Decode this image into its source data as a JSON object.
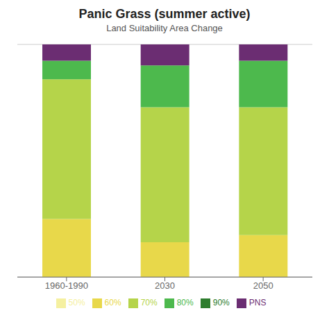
{
  "chart_data": {
    "type": "bar",
    "title": "Panic Grass (summer active)",
    "subtitle": "Land Suitability Area Change",
    "categories": [
      "1960-1990",
      "2030",
      "2050"
    ],
    "series": [
      {
        "name": "50%",
        "color": "#f5f0a0",
        "values": [
          0,
          0,
          0
        ]
      },
      {
        "name": "60%",
        "color": "#e8d84a",
        "values": [
          25,
          15,
          18
        ]
      },
      {
        "name": "70%",
        "color": "#b5d44a",
        "values": [
          60,
          58,
          55
        ]
      },
      {
        "name": "80%",
        "color": "#4db94d",
        "values": [
          8,
          18,
          20
        ]
      },
      {
        "name": "90%",
        "color": "#2e7d2e",
        "values": [
          0,
          0,
          0
        ]
      },
      {
        "name": "PNS",
        "color": "#6b2d72",
        "values": [
          7,
          9,
          7
        ]
      }
    ],
    "stacked": true,
    "ylim": [
      0,
      100
    ],
    "yticks": [
      0,
      20,
      40,
      60,
      80,
      100
    ],
    "grid": true,
    "tick_labels": "x",
    "legend": "bottom"
  }
}
